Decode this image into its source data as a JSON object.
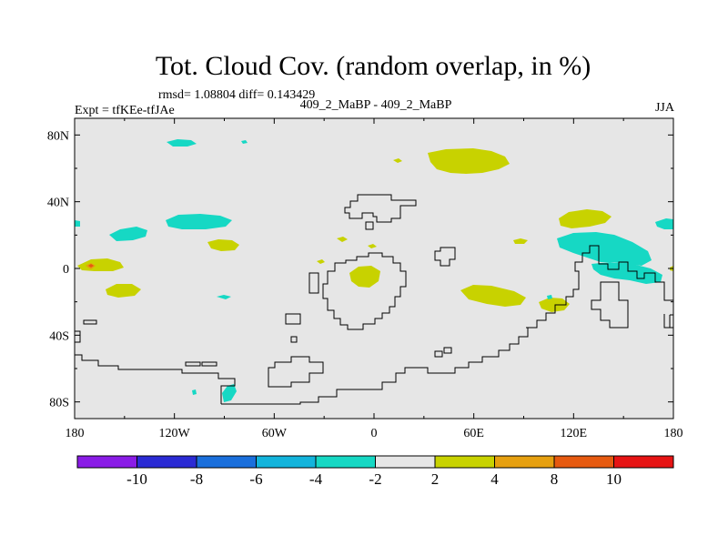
{
  "title": "Tot. Cloud Cov. (random overlap, in %)",
  "stats": "rmsd= 1.08804 diff= 0.143429",
  "experiment": "Expt = tfKEe-tfJAe",
  "case": "409_2_MaBP - 409_2_MaBP",
  "season": "JJA",
  "map": {
    "lon_range": [
      -180,
      180
    ],
    "lat_range": [
      -90,
      90
    ],
    "x_ticks": [
      {
        "value": -180,
        "label": "180"
      },
      {
        "value": -120,
        "label": "120W"
      },
      {
        "value": -60,
        "label": "60W"
      },
      {
        "value": 0,
        "label": "0"
      },
      {
        "value": 60,
        "label": "60E"
      },
      {
        "value": 120,
        "label": "120E"
      },
      {
        "value": 180,
        "label": "180"
      }
    ],
    "y_ticks": [
      {
        "value": 80,
        "label": "80N"
      },
      {
        "value": 40,
        "label": "40N"
      },
      {
        "value": 0,
        "label": "0"
      },
      {
        "value": -40,
        "label": "40S"
      },
      {
        "value": -80,
        "label": "80S"
      }
    ],
    "background_color": "#e6e6e6",
    "coastline_color": "#000000"
  },
  "colorbar": {
    "colors": [
      "#8a1ce6",
      "#2b2bd4",
      "#1a6fdc",
      "#13b4dc",
      "#16d8c4",
      "#e6e6e6",
      "#c8d200",
      "#e6a010",
      "#e65a10",
      "#e61414"
    ],
    "labels": [
      "-10",
      "-8",
      "-6",
      "-4",
      "-2",
      "2",
      "4",
      "8",
      "10"
    ]
  }
}
